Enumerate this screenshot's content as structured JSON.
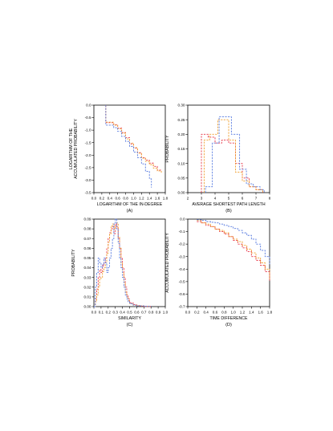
{
  "chart_data": [
    {
      "type": "line",
      "panel_label": "(A)",
      "xlabel": "LOGARITHM OF THE IN-DEGREE",
      "ylabel": [
        "LOGARITHM OF THE",
        "ACCUMULATED PROBABILITY"
      ],
      "xlim": [
        0.0,
        1.8
      ],
      "ylim": [
        -3.5,
        0.0
      ],
      "xticks": [
        0.0,
        0.2,
        0.4,
        0.6,
        0.8,
        1.0,
        1.2,
        1.4,
        1.6,
        1.8
      ],
      "xtick_labels": [
        "0.0",
        "0.2",
        "0.4",
        "0.6",
        "0.8",
        "1.0",
        "1.2",
        "1.4",
        "1.6",
        "1.8"
      ],
      "yticks": [
        0.0,
        -0.5,
        -1.0,
        -1.5,
        -2.0,
        -2.5,
        -3.0,
        -3.5
      ],
      "ytick_labels": [
        "0.0",
        "-0.5",
        "-1.0",
        "-1.5",
        "-2.0",
        "-2.5",
        "-3.0",
        "-3.5"
      ],
      "grid": false,
      "series": [
        {
          "color": "#e8394a",
          "step": true,
          "x": [
            0.3,
            0.3,
            0.5,
            0.6,
            0.7,
            0.8,
            0.9,
            1.0,
            1.1,
            1.2,
            1.3,
            1.4,
            1.5,
            1.6,
            1.7
          ],
          "y": [
            0.0,
            -0.7,
            -0.78,
            -0.92,
            -1.1,
            -1.3,
            -1.55,
            -1.72,
            -1.9,
            -2.1,
            -2.2,
            -2.32,
            -2.45,
            -2.6,
            -2.65
          ]
        },
        {
          "color": "#f0a030",
          "step": true,
          "x": [
            0.3,
            0.3,
            0.5,
            0.6,
            0.7,
            0.8,
            0.9,
            1.0,
            1.1,
            1.2,
            1.3,
            1.4,
            1.5,
            1.6,
            1.7
          ],
          "y": [
            0.0,
            -0.68,
            -0.8,
            -0.95,
            -1.12,
            -1.35,
            -1.52,
            -1.7,
            -1.92,
            -2.12,
            -2.25,
            -2.38,
            -2.52,
            -2.63,
            -2.7
          ]
        },
        {
          "color": "#5a7de0",
          "step": true,
          "x": [
            0.3,
            0.3,
            0.5,
            0.6,
            0.7,
            0.8,
            0.9,
            1.0,
            1.1,
            1.2,
            1.3,
            1.4,
            1.45
          ],
          "y": [
            0.0,
            -0.8,
            -0.9,
            -1.05,
            -1.25,
            -1.45,
            -1.65,
            -1.88,
            -2.1,
            -2.35,
            -2.65,
            -2.95,
            -3.3
          ]
        }
      ]
    },
    {
      "type": "line",
      "panel_label": "(B)",
      "xlabel": "AVERAGE SHORTEST PATH LENGTH",
      "ylabel": [
        "PROBABILITY"
      ],
      "xlim": [
        2,
        8
      ],
      "ylim": [
        0.0,
        0.3
      ],
      "xticks": [
        2,
        3,
        4,
        5,
        6,
        7,
        8
      ],
      "xtick_labels": [
        "2",
        "3",
        "4",
        "5",
        "6",
        "7",
        "8"
      ],
      "yticks": [
        0.0,
        0.05,
        0.1,
        0.15,
        0.2,
        0.25,
        0.3
      ],
      "ytick_labels": [
        "0.00",
        "0.05",
        "0.10",
        "0.15",
        "0.20",
        "0.25",
        "0.30"
      ],
      "grid": false,
      "series": [
        {
          "color": "#e8394a",
          "step": true,
          "x": [
            3.0,
            3.0,
            3.5,
            4.0,
            4.5,
            5.0,
            5.5,
            6.0,
            6.5,
            7.0,
            7.5
          ],
          "y": [
            0.0,
            0.2,
            0.19,
            0.17,
            0.18,
            0.17,
            0.1,
            0.05,
            0.02,
            0.01,
            0.0
          ]
        },
        {
          "color": "#f0a030",
          "step": true,
          "x": [
            3.2,
            3.2,
            3.6,
            4.2,
            5.0,
            5.5,
            6.0,
            6.5,
            7.0,
            7.5
          ],
          "y": [
            0.0,
            0.18,
            0.2,
            0.25,
            0.18,
            0.07,
            0.04,
            0.02,
            0.01,
            0.0
          ]
        },
        {
          "color": "#5a7de0",
          "step": true,
          "x": [
            3.3,
            3.3,
            3.8,
            4.3,
            5.2,
            5.8,
            6.3,
            6.8,
            7.3,
            7.6
          ],
          "y": [
            0.0,
            0.02,
            0.17,
            0.26,
            0.2,
            0.08,
            0.03,
            0.02,
            0.01,
            0.0
          ]
        }
      ]
    },
    {
      "type": "line",
      "panel_label": "(C)",
      "xlabel": "SIMILARITY",
      "ylabel": [
        "PROBABILITY"
      ],
      "xlim": [
        0.0,
        1.0
      ],
      "ylim": [
        0.0,
        0.09
      ],
      "xticks": [
        0.0,
        0.1,
        0.2,
        0.3,
        0.4,
        0.5,
        0.6,
        0.7,
        0.8,
        0.9,
        1.0
      ],
      "xtick_labels": [
        "0.0",
        "0.1",
        "0.2",
        "0.3",
        "0.4",
        "0.5",
        "0.6",
        "0.7",
        "0.8",
        "0.9",
        "1.0"
      ],
      "yticks": [
        0.0,
        0.01,
        0.02,
        0.03,
        0.04,
        0.05,
        0.06,
        0.07,
        0.08,
        0.09
      ],
      "ytick_labels": [
        "0.00",
        "0.01",
        "0.02",
        "0.03",
        "0.04",
        "0.05",
        "0.06",
        "0.07",
        "0.08",
        "0.09"
      ],
      "grid": false,
      "series": [
        {
          "color": "#e8394a",
          "step": true,
          "x": [
            0.0,
            0.02,
            0.04,
            0.06,
            0.08,
            0.1,
            0.12,
            0.14,
            0.16,
            0.18,
            0.2,
            0.22,
            0.24,
            0.26,
            0.28,
            0.3,
            0.32,
            0.34,
            0.36,
            0.38,
            0.4,
            0.42,
            0.44,
            0.46,
            0.48,
            0.5,
            0.55,
            0.6,
            0.65,
            0.7,
            0.8
          ],
          "y": [
            0.0,
            0.008,
            0.018,
            0.03,
            0.038,
            0.035,
            0.042,
            0.045,
            0.05,
            0.06,
            0.07,
            0.076,
            0.08,
            0.082,
            0.075,
            0.085,
            0.082,
            0.07,
            0.06,
            0.05,
            0.04,
            0.03,
            0.02,
            0.012,
            0.008,
            0.004,
            0.002,
            0.001,
            0.0005,
            0.0002,
            0.0
          ]
        },
        {
          "color": "#f0a030",
          "step": true,
          "x": [
            0.0,
            0.02,
            0.04,
            0.06,
            0.08,
            0.1,
            0.12,
            0.14,
            0.16,
            0.18,
            0.2,
            0.22,
            0.24,
            0.26,
            0.28,
            0.3,
            0.32,
            0.34,
            0.36,
            0.38,
            0.4,
            0.42,
            0.44,
            0.46,
            0.48,
            0.5,
            0.55,
            0.6,
            0.7,
            0.8
          ],
          "y": [
            0.0,
            0.005,
            0.012,
            0.02,
            0.028,
            0.03,
            0.036,
            0.04,
            0.045,
            0.055,
            0.066,
            0.075,
            0.083,
            0.085,
            0.08,
            0.083,
            0.086,
            0.072,
            0.06,
            0.045,
            0.035,
            0.025,
            0.015,
            0.01,
            0.006,
            0.003,
            0.0015,
            0.0008,
            0.0003,
            0.0
          ]
        },
        {
          "color": "#5a7de0",
          "step": true,
          "x": [
            0.0,
            0.02,
            0.04,
            0.06,
            0.08,
            0.1,
            0.12,
            0.14,
            0.16,
            0.18,
            0.2,
            0.22,
            0.24,
            0.26,
            0.28,
            0.3,
            0.32,
            0.34,
            0.36,
            0.38,
            0.4,
            0.42,
            0.44,
            0.46,
            0.48,
            0.5,
            0.55,
            0.6,
            0.7,
            0.8
          ],
          "y": [
            0.0,
            0.02,
            0.035,
            0.05,
            0.045,
            0.04,
            0.043,
            0.05,
            0.045,
            0.035,
            0.04,
            0.05,
            0.06,
            0.07,
            0.085,
            0.09,
            0.08,
            0.065,
            0.05,
            0.04,
            0.03,
            0.02,
            0.012,
            0.008,
            0.005,
            0.003,
            0.0015,
            0.0008,
            0.0003,
            0.0
          ]
        }
      ]
    },
    {
      "type": "line",
      "panel_label": "(D)",
      "xlabel": "TIME DIFFERENCE",
      "ylabel": [
        "ACCUMULATED PROBABILITY"
      ],
      "xlim": [
        0.0,
        1.8
      ],
      "ylim": [
        -0.7,
        0.0
      ],
      "xticks": [
        0.0,
        0.2,
        0.4,
        0.6,
        0.8,
        1.0,
        1.2,
        1.4,
        1.6,
        1.8
      ],
      "xtick_labels": [
        "0.0",
        "0.2",
        "0.4",
        "0.6",
        "0.8",
        "1.0",
        "1.2",
        "1.4",
        "1.6",
        "1.8"
      ],
      "yticks": [
        0.0,
        -0.1,
        -0.2,
        -0.3,
        -0.4,
        -0.5,
        -0.6,
        -0.7
      ],
      "ytick_labels": [
        "0.0",
        "-0.1",
        "-0.2",
        "-0.3",
        "-0.4",
        "-0.5",
        "-0.6",
        "-0.7"
      ],
      "grid": false,
      "series": [
        {
          "color": "#e8394a",
          "step": true,
          "x": [
            0.2,
            0.3,
            0.4,
            0.5,
            0.6,
            0.7,
            0.8,
            0.9,
            1.0,
            1.1,
            1.2,
            1.3,
            1.4,
            1.5,
            1.6,
            1.7,
            1.8
          ],
          "y": [
            -0.02,
            -0.03,
            -0.05,
            -0.06,
            -0.08,
            -0.1,
            -0.12,
            -0.14,
            -0.17,
            -0.2,
            -0.23,
            -0.26,
            -0.3,
            -0.33,
            -0.37,
            -0.42,
            -0.5
          ]
        },
        {
          "color": "#f0a030",
          "step": true,
          "x": [
            0.2,
            0.3,
            0.4,
            0.5,
            0.6,
            0.7,
            0.8,
            0.9,
            1.0,
            1.1,
            1.2,
            1.3,
            1.4,
            1.5,
            1.6,
            1.7,
            1.8
          ],
          "y": [
            -0.01,
            -0.03,
            -0.04,
            -0.06,
            -0.08,
            -0.09,
            -0.11,
            -0.14,
            -0.16,
            -0.18,
            -0.21,
            -0.24,
            -0.27,
            -0.31,
            -0.35,
            -0.4,
            -0.48
          ]
        },
        {
          "color": "#5a7de0",
          "step": true,
          "x": [
            0.2,
            0.3,
            0.4,
            0.5,
            0.6,
            0.7,
            0.8,
            0.9,
            1.0,
            1.1,
            1.2,
            1.3,
            1.4,
            1.5,
            1.6,
            1.7,
            1.8
          ],
          "y": [
            -0.005,
            -0.01,
            -0.02,
            -0.025,
            -0.03,
            -0.04,
            -0.05,
            -0.06,
            -0.075,
            -0.09,
            -0.11,
            -0.13,
            -0.16,
            -0.2,
            -0.25,
            -0.3,
            -0.37
          ]
        }
      ]
    }
  ]
}
